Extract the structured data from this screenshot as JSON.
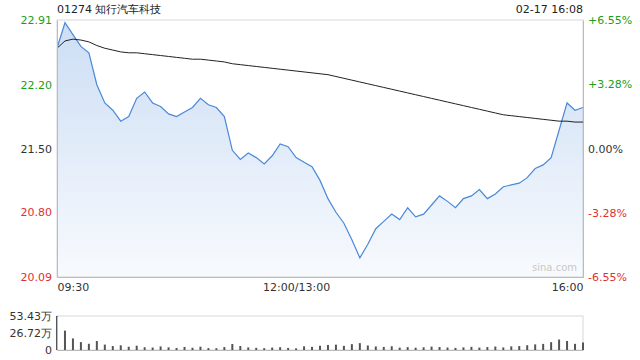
{
  "chart_data": [
    {
      "type": "line",
      "title": "01274 知行汽车科技",
      "subtitle": "02-17 16:08",
      "annotation": "sina.com",
      "x": [
        0,
        5,
        10,
        15,
        20,
        25,
        30,
        35,
        40,
        45,
        50,
        55,
        60,
        65,
        70,
        75,
        80,
        85,
        90,
        95,
        100,
        105,
        110,
        115,
        120,
        125,
        130,
        135,
        140,
        145,
        150,
        155,
        160,
        165,
        170,
        175,
        180,
        185,
        190,
        195,
        200,
        205,
        210,
        215,
        220,
        225,
        230,
        235,
        240,
        245,
        250,
        255,
        260,
        265,
        270,
        275,
        280,
        285,
        290,
        295,
        300,
        305,
        310,
        315,
        320,
        325,
        330
      ],
      "xlim": [
        0,
        330
      ],
      "xticks": [
        {
          "value": 0,
          "label": "09:30"
        },
        {
          "value": 150,
          "label": "12:00/13:00"
        },
        {
          "value": 330,
          "label": "16:00"
        }
      ],
      "ylim": [
        20.09,
        22.91
      ],
      "yticks": [
        20.09,
        {
          "value": 20.8,
          "label": "20.80"
        },
        {
          "value": 21.5,
          "label": "21.50"
        },
        {
          "value": 22.2,
          "label": "22.20"
        },
        22.91
      ],
      "y2lim": [
        -6.55,
        6.55
      ],
      "y2ticks": [
        {
          "value": -6.55,
          "label": "-6.55%"
        },
        {
          "value": -3.28,
          "label": "-3.28%"
        },
        {
          "value": 0,
          "label": "0.00%"
        },
        {
          "value": 3.28,
          "label": "+3.28%"
        },
        {
          "value": 6.55,
          "label": "+6.55%"
        }
      ],
      "grid": false,
      "series": [
        {
          "type": "area",
          "color": "#4a88d8",
          "values": [
            22.6,
            22.88,
            22.75,
            22.62,
            22.55,
            22.2,
            22.0,
            21.92,
            21.8,
            21.85,
            22.05,
            22.12,
            22.0,
            21.96,
            21.88,
            21.85,
            21.9,
            21.95,
            22.05,
            21.98,
            21.95,
            21.85,
            21.48,
            21.38,
            21.45,
            21.4,
            21.33,
            21.42,
            21.55,
            21.52,
            21.4,
            21.35,
            21.3,
            21.15,
            20.95,
            20.8,
            20.68,
            20.5,
            20.3,
            20.45,
            20.62,
            20.7,
            20.78,
            20.72,
            20.85,
            20.75,
            20.78,
            20.88,
            20.98,
            20.92,
            20.85,
            20.95,
            20.98,
            21.05,
            20.95,
            21.0,
            21.08,
            21.1,
            21.12,
            21.18,
            21.28,
            21.32,
            21.4,
            21.7,
            22.0,
            21.92,
            21.95
          ]
        },
        {
          "type": "line",
          "color": "#222222",
          "values": [
            22.6,
            22.68,
            22.7,
            22.69,
            22.67,
            22.63,
            22.6,
            22.58,
            22.56,
            22.55,
            22.55,
            22.54,
            22.53,
            22.52,
            22.51,
            22.5,
            22.49,
            22.48,
            22.48,
            22.47,
            22.46,
            22.45,
            22.43,
            22.42,
            22.41,
            22.4,
            22.39,
            22.38,
            22.37,
            22.36,
            22.35,
            22.34,
            22.33,
            22.32,
            22.31,
            22.29,
            22.27,
            22.25,
            22.23,
            22.21,
            22.19,
            22.17,
            22.15,
            22.13,
            22.11,
            22.09,
            22.07,
            22.05,
            22.03,
            22.01,
            21.99,
            21.97,
            21.95,
            21.93,
            21.91,
            21.89,
            21.87,
            21.86,
            21.85,
            21.84,
            21.83,
            21.82,
            21.81,
            21.8,
            21.8,
            21.79,
            21.79
          ]
        }
      ]
    },
    {
      "type": "bar",
      "color": "#555555",
      "x": [
        0,
        5,
        10,
        15,
        20,
        25,
        30,
        35,
        40,
        45,
        50,
        55,
        60,
        65,
        70,
        75,
        80,
        85,
        90,
        95,
        100,
        105,
        110,
        115,
        120,
        125,
        130,
        135,
        140,
        145,
        150,
        155,
        160,
        165,
        170,
        175,
        180,
        185,
        190,
        195,
        200,
        205,
        210,
        215,
        220,
        225,
        230,
        235,
        240,
        245,
        250,
        255,
        260,
        265,
        270,
        275,
        280,
        285,
        290,
        295,
        300,
        305,
        310,
        315,
        320,
        325,
        330
      ],
      "xlim": [
        0,
        330
      ],
      "ylim": [
        0,
        53.43
      ],
      "yticks": [
        0,
        {
          "value": 26.72,
          "label": "26.72万"
        },
        {
          "value": 53.43,
          "label": "53.43万"
        }
      ],
      "tick_labels": "y",
      "values": [
        53.43,
        30.5,
        18.2,
        12.4,
        9.8,
        14.1,
        8.5,
        6.2,
        7.4,
        5.1,
        6.8,
        4.3,
        3.9,
        5.6,
        4.2,
        3.1,
        4.8,
        3.5,
        5.2,
        3.0,
        2.8,
        4.6,
        9.5,
        6.3,
        4.1,
        3.4,
        2.9,
        3.8,
        4.4,
        3.2,
        2.6,
        5.8,
        4.9,
        6.7,
        7.9,
        8.4,
        6.5,
        9.2,
        10.8,
        7.1,
        5.6,
        4.8,
        5.9,
        3.7,
        4.5,
        3.6,
        4.2,
        5.3,
        4.7,
        3.9,
        3.3,
        4.1,
        5.0,
        3.8,
        4.6,
        5.4,
        4.0,
        5.7,
        6.2,
        7.5,
        8.8,
        9.6,
        12.3,
        16.5,
        14.2,
        9.7,
        11.8
      ]
    }
  ]
}
